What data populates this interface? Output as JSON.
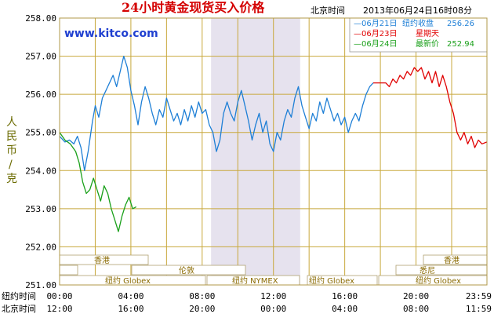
{
  "header": {
    "title": "24小时黄金现货买入价格",
    "beijing_label": "北京时间",
    "timestamp": "2013年06月24日16时08分",
    "watermark": "www.kitco.com"
  },
  "legend": [
    {
      "date": "06月21日",
      "label": "纽约收盘",
      "value": "256.26",
      "color": "#1e7fd6"
    },
    {
      "date": "06月23日",
      "label": "星期天",
      "value": "",
      "color": "#e00000"
    },
    {
      "date": "06月24日",
      "label": "最新价",
      "value": "252.94",
      "color": "#1aa01a"
    }
  ],
  "ylabel_chars": [
    "人",
    "民",
    "币",
    "/",
    "克"
  ],
  "row_labels": [
    "纽约时间",
    "北京时间"
  ],
  "bands": {
    "hongkong": "香港",
    "london": "伦敦",
    "ny_globex": "纽约 Globex",
    "ny_nymex": "纽约 NYMEX",
    "sydney": "悉尼"
  },
  "colors": {
    "grid": "#c8a83c",
    "shade": "#e6e2ee",
    "blue": "#1e7fd6",
    "red": "#e00000",
    "green": "#1aa01a"
  },
  "chart_data": {
    "type": "line",
    "title": "24小时黄金现货买入价格",
    "ylabel": "人民币/克",
    "ylim": [
      251.0,
      258.0
    ],
    "yticks": [
      "258.00",
      "257.00",
      "256.00",
      "255.00",
      "254.00",
      "253.00",
      "252.00",
      "251.00"
    ],
    "x_hours": [
      0,
      2,
      4,
      6,
      8,
      10,
      12,
      14,
      16,
      18,
      20,
      22,
      23.98
    ],
    "xticks_ny": [
      "00:00",
      "04:00",
      "08:00",
      "12:00",
      "16:00",
      "20:00",
      "23:59"
    ],
    "xticks_bj": [
      "12:00",
      "16:00",
      "20:00",
      "00:00",
      "04:00",
      "08:00",
      "11:59"
    ],
    "shaded_hours": [
      8.5,
      13.5
    ],
    "series": [
      {
        "name": "06月21日",
        "color": "#1e7fd6",
        "points": [
          [
            0.0,
            254.9
          ],
          [
            0.3,
            254.75
          ],
          [
            0.55,
            254.8
          ],
          [
            0.8,
            254.7
          ],
          [
            1.0,
            254.9
          ],
          [
            1.2,
            254.6
          ],
          [
            1.4,
            254.0
          ],
          [
            1.6,
            254.5
          ],
          [
            1.85,
            255.3
          ],
          [
            2.0,
            255.7
          ],
          [
            2.2,
            255.4
          ],
          [
            2.4,
            255.9
          ],
          [
            2.6,
            256.1
          ],
          [
            2.8,
            256.3
          ],
          [
            3.0,
            256.5
          ],
          [
            3.2,
            256.2
          ],
          [
            3.4,
            256.6
          ],
          [
            3.6,
            257.0
          ],
          [
            3.8,
            256.7
          ],
          [
            4.0,
            256.1
          ],
          [
            4.2,
            255.7
          ],
          [
            4.4,
            255.2
          ],
          [
            4.6,
            255.8
          ],
          [
            4.8,
            256.2
          ],
          [
            5.0,
            255.9
          ],
          [
            5.2,
            255.5
          ],
          [
            5.4,
            255.2
          ],
          [
            5.6,
            255.6
          ],
          [
            5.8,
            255.4
          ],
          [
            6.0,
            255.9
          ],
          [
            6.2,
            255.6
          ],
          [
            6.4,
            255.3
          ],
          [
            6.6,
            255.5
          ],
          [
            6.8,
            255.2
          ],
          [
            7.0,
            255.6
          ],
          [
            7.2,
            255.3
          ],
          [
            7.4,
            255.7
          ],
          [
            7.6,
            255.4
          ],
          [
            7.8,
            255.8
          ],
          [
            8.0,
            255.5
          ],
          [
            8.2,
            255.6
          ],
          [
            8.4,
            255.2
          ],
          [
            8.6,
            255.0
          ],
          [
            8.8,
            254.5
          ],
          [
            9.0,
            254.8
          ],
          [
            9.2,
            255.5
          ],
          [
            9.4,
            255.8
          ],
          [
            9.6,
            255.5
          ],
          [
            9.8,
            255.3
          ],
          [
            10.0,
            255.8
          ],
          [
            10.2,
            256.1
          ],
          [
            10.4,
            255.7
          ],
          [
            10.6,
            255.3
          ],
          [
            10.8,
            254.8
          ],
          [
            11.0,
            255.2
          ],
          [
            11.2,
            255.5
          ],
          [
            11.4,
            255.0
          ],
          [
            11.6,
            255.3
          ],
          [
            11.8,
            254.7
          ],
          [
            12.0,
            254.5
          ],
          [
            12.2,
            255.0
          ],
          [
            12.4,
            254.8
          ],
          [
            12.6,
            255.3
          ],
          [
            12.8,
            255.6
          ],
          [
            13.0,
            255.4
          ],
          [
            13.2,
            255.9
          ],
          [
            13.4,
            256.2
          ],
          [
            13.6,
            255.7
          ],
          [
            13.8,
            255.4
          ],
          [
            14.0,
            255.1
          ],
          [
            14.2,
            255.5
          ],
          [
            14.4,
            255.3
          ],
          [
            14.6,
            255.8
          ],
          [
            14.8,
            255.5
          ],
          [
            15.0,
            255.9
          ],
          [
            15.2,
            255.6
          ],
          [
            15.4,
            255.3
          ],
          [
            15.6,
            255.5
          ],
          [
            15.8,
            255.2
          ],
          [
            16.0,
            255.4
          ],
          [
            16.2,
            255.0
          ],
          [
            16.4,
            255.3
          ],
          [
            16.6,
            255.5
          ],
          [
            16.8,
            255.3
          ],
          [
            17.0,
            255.7
          ],
          [
            17.2,
            256.0
          ],
          [
            17.4,
            256.2
          ],
          [
            17.6,
            256.3
          ]
        ]
      },
      {
        "name": "06月23日",
        "color": "#e00000",
        "points": [
          [
            17.6,
            256.3
          ],
          [
            18.3,
            256.3
          ],
          [
            18.5,
            256.2
          ],
          [
            18.7,
            256.4
          ],
          [
            18.9,
            256.3
          ],
          [
            19.1,
            256.5
          ],
          [
            19.3,
            256.4
          ],
          [
            19.5,
            256.6
          ],
          [
            19.7,
            256.5
          ],
          [
            19.9,
            256.7
          ],
          [
            20.1,
            256.6
          ],
          [
            20.3,
            256.7
          ],
          [
            20.5,
            256.4
          ],
          [
            20.7,
            256.6
          ],
          [
            20.9,
            256.3
          ],
          [
            21.1,
            256.6
          ],
          [
            21.3,
            256.2
          ],
          [
            21.5,
            256.5
          ],
          [
            21.7,
            256.2
          ],
          [
            21.9,
            255.8
          ],
          [
            22.1,
            255.5
          ],
          [
            22.3,
            255.0
          ],
          [
            22.5,
            254.8
          ],
          [
            22.7,
            255.0
          ],
          [
            22.9,
            254.7
          ],
          [
            23.1,
            254.9
          ],
          [
            23.3,
            254.6
          ],
          [
            23.5,
            254.8
          ],
          [
            23.7,
            254.7
          ],
          [
            23.98,
            254.75
          ]
        ]
      },
      {
        "name": "06月24日",
        "color": "#1aa01a",
        "points": [
          [
            0.0,
            255.0
          ],
          [
            0.3,
            254.8
          ],
          [
            0.6,
            254.7
          ],
          [
            0.9,
            254.5
          ],
          [
            1.1,
            254.2
          ],
          [
            1.3,
            253.7
          ],
          [
            1.5,
            253.4
          ],
          [
            1.7,
            253.5
          ],
          [
            1.9,
            253.8
          ],
          [
            2.1,
            253.5
          ],
          [
            2.3,
            253.2
          ],
          [
            2.5,
            253.6
          ],
          [
            2.7,
            253.4
          ],
          [
            2.9,
            253.0
          ],
          [
            3.1,
            252.7
          ],
          [
            3.3,
            252.4
          ],
          [
            3.5,
            252.8
          ],
          [
            3.7,
            253.1
          ],
          [
            3.9,
            253.3
          ],
          [
            4.1,
            253.0
          ],
          [
            4.3,
            253.05
          ]
        ]
      }
    ]
  }
}
